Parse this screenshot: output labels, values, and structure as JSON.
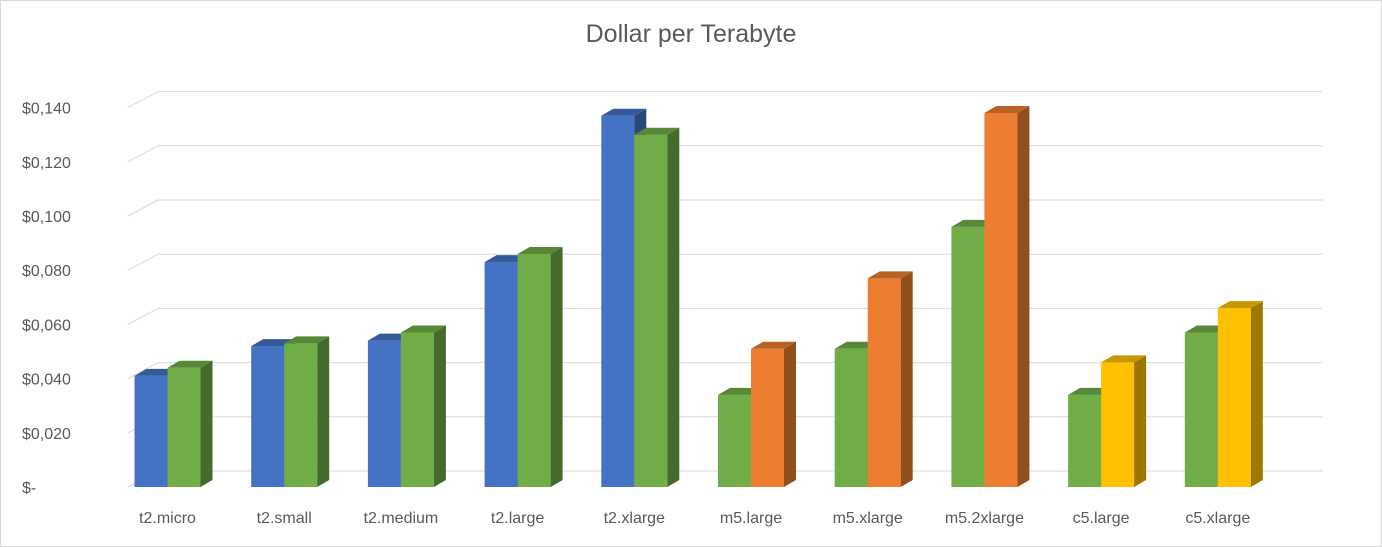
{
  "chart_data": {
    "type": "bar",
    "title": "Dollar per Terabyte",
    "xlabel": "",
    "ylabel": "",
    "ylim": [
      0,
      0.14
    ],
    "y_ticks": [
      0,
      0.02,
      0.04,
      0.06,
      0.08,
      0.1,
      0.12,
      0.14
    ],
    "y_tick_labels": [
      "$-",
      "$0,020",
      "$0,040",
      "$0,060",
      "$0,080",
      "$0,100",
      "$0,120",
      "$0,140"
    ],
    "grid": true,
    "legend": "none",
    "style": "3d-clustered-column",
    "categories": [
      "t2.micro",
      "t2.small",
      "t2.medium",
      "t2.large",
      "t2.xlarge",
      "m5.large",
      "m5.xlarge",
      "m5.2xlarge",
      "c5.large",
      "c5.xlarge"
    ],
    "bars": [
      [
        {
          "value": 0.041,
          "color": "#4472c4"
        },
        {
          "value": 0.044,
          "color": "#70ad47"
        }
      ],
      [
        {
          "value": 0.052,
          "color": "#4472c4"
        },
        {
          "value": 0.053,
          "color": "#70ad47"
        }
      ],
      [
        {
          "value": 0.054,
          "color": "#4472c4"
        },
        {
          "value": 0.057,
          "color": "#70ad47"
        }
      ],
      [
        {
          "value": 0.083,
          "color": "#4472c4"
        },
        {
          "value": 0.086,
          "color": "#70ad47"
        }
      ],
      [
        {
          "value": 0.137,
          "color": "#4472c4"
        },
        {
          "value": 0.13,
          "color": "#70ad47"
        }
      ],
      [
        {
          "value": 0.034,
          "color": "#70ad47"
        },
        {
          "value": 0.051,
          "color": "#ed7d31"
        }
      ],
      [
        {
          "value": 0.051,
          "color": "#70ad47"
        },
        {
          "value": 0.077,
          "color": "#ed7d31"
        }
      ],
      [
        {
          "value": 0.096,
          "color": "#70ad47"
        },
        {
          "value": 0.138,
          "color": "#ed7d31"
        }
      ],
      [
        {
          "value": 0.034,
          "color": "#70ad47"
        },
        {
          "value": 0.046,
          "color": "#ffc000"
        }
      ],
      [
        {
          "value": 0.057,
          "color": "#70ad47"
        },
        {
          "value": 0.066,
          "color": "#ffc000"
        }
      ]
    ],
    "colors": {
      "blue": "#4472c4",
      "green": "#70ad47",
      "orange": "#ed7d31",
      "yellow": "#ffc000",
      "grid": "#d9d9d9",
      "text": "#595959"
    }
  }
}
